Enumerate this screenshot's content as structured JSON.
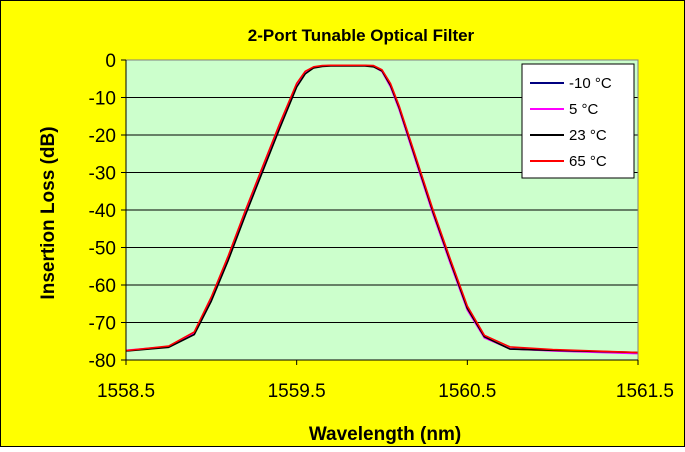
{
  "chart_data": {
    "type": "line",
    "title": "2-Port Tunable Optical Filter",
    "xlabel": "Wavelength (nm)",
    "ylabel": "Insertion Loss (dB)",
    "xlim": [
      1558.5,
      1561.5
    ],
    "ylim": [
      -80,
      0
    ],
    "x_ticks": [
      1558.5,
      1559.5,
      1560.5,
      1561.5
    ],
    "x_tick_labels": [
      "1558.5",
      "1559.5",
      "1560.5",
      "1561.5"
    ],
    "y_ticks": [
      0,
      -10,
      -20,
      -30,
      -40,
      -50,
      -60,
      -70,
      -80
    ],
    "y_tick_labels": [
      "0",
      "-10",
      "-20",
      "-30",
      "-40",
      "-50",
      "-60",
      "-70",
      "-80"
    ],
    "grid": "horizontal",
    "legend_position": "top-right",
    "colors": {
      "frame": "#FFFF00",
      "plot_background": "#CCFFCC",
      "gridline": "#000000"
    },
    "series": [
      {
        "name": "-10 °C",
        "color": "#000080",
        "x": [
          1558.5,
          1558.75,
          1558.9,
          1559.0,
          1559.1,
          1559.2,
          1559.3,
          1559.4,
          1559.5,
          1559.55,
          1559.6,
          1559.65,
          1559.7,
          1559.9,
          1559.95,
          1560.0,
          1560.05,
          1560.1,
          1560.2,
          1560.3,
          1560.4,
          1560.5,
          1560.6,
          1560.75,
          1561.0,
          1561.5
        ],
        "y": [
          -77.5,
          -76.5,
          -73,
          -64,
          -53,
          -41,
          -29.5,
          -18,
          -7,
          -3.5,
          -2,
          -1.6,
          -1.5,
          -1.5,
          -1.7,
          -3,
          -7,
          -13,
          -27,
          -41,
          -54,
          -66.5,
          -74,
          -77,
          -77.5,
          -78.2
        ]
      },
      {
        "name": "5 °C",
        "color": "#FF00FF",
        "x": [
          1558.5,
          1558.75,
          1558.9,
          1559.0,
          1559.1,
          1559.2,
          1559.3,
          1559.4,
          1559.5,
          1559.55,
          1559.6,
          1559.65,
          1559.7,
          1559.9,
          1559.95,
          1560.0,
          1560.05,
          1560.1,
          1560.2,
          1560.3,
          1560.4,
          1560.5,
          1560.6,
          1560.75,
          1561.0,
          1561.5
        ],
        "y": [
          -77.4,
          -76.4,
          -72.8,
          -63.8,
          -52.7,
          -40.7,
          -29.2,
          -17.7,
          -6.8,
          -3.4,
          -1.9,
          -1.6,
          -1.5,
          -1.5,
          -1.7,
          -3.1,
          -7.2,
          -13.2,
          -27.3,
          -41.3,
          -54.3,
          -66.7,
          -74.1,
          -77,
          -77.6,
          -78.3
        ]
      },
      {
        "name": "23 °C",
        "color": "#000000",
        "x": [
          1558.5,
          1558.75,
          1558.9,
          1559.0,
          1559.1,
          1559.2,
          1559.3,
          1559.4,
          1559.5,
          1559.55,
          1559.6,
          1559.65,
          1559.7,
          1559.9,
          1559.95,
          1560.0,
          1560.05,
          1560.1,
          1560.2,
          1560.3,
          1560.4,
          1560.5,
          1560.6,
          1560.75,
          1561.0,
          1561.5
        ],
        "y": [
          -77.6,
          -76.6,
          -73.2,
          -64.3,
          -53.3,
          -41.3,
          -29.8,
          -18.3,
          -7.2,
          -3.7,
          -2.1,
          -1.7,
          -1.6,
          -1.6,
          -1.8,
          -2.9,
          -6.8,
          -12.7,
          -26.7,
          -40.7,
          -53.7,
          -66.2,
          -73.8,
          -77.1,
          -77.4,
          -78
        ]
      },
      {
        "name": "65 °C",
        "color": "#FF0000",
        "x": [
          1558.5,
          1558.75,
          1558.9,
          1559.0,
          1559.1,
          1559.2,
          1559.3,
          1559.4,
          1559.5,
          1559.55,
          1559.6,
          1559.65,
          1559.7,
          1559.9,
          1559.95,
          1560.0,
          1560.05,
          1560.1,
          1560.2,
          1560.3,
          1560.4,
          1560.5,
          1560.6,
          1560.75,
          1561.0,
          1561.5
        ],
        "y": [
          -77.5,
          -76.3,
          -72.5,
          -63.2,
          -52.1,
          -40,
          -28.5,
          -17,
          -6.2,
          -3,
          -1.8,
          -1.5,
          -1.4,
          -1.4,
          -1.5,
          -2.6,
          -6.3,
          -12.2,
          -26.1,
          -40.1,
          -53.1,
          -65.6,
          -73.4,
          -76.5,
          -77.2,
          -78
        ]
      }
    ]
  }
}
